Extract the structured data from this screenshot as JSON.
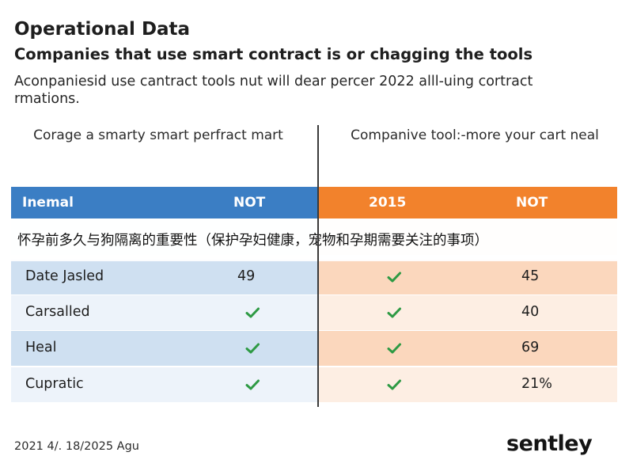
{
  "header": {
    "title": "Operational Data",
    "subtitle": "Companies that use smart contract is or chagging the tools",
    "description": "Aconpaniesid use cantract tools nut will dear percer 2022 alll-uing cortract rmations."
  },
  "columns": {
    "left_heading": "Corage a smarty smart perfract mart",
    "right_heading": "Companive tool:-more your cart neal"
  },
  "table": {
    "header_cells": [
      "Inemal",
      "NOT",
      "2015",
      "NOT"
    ],
    "rows": [
      {
        "label": "Date Jasled",
        "col2": "49",
        "col3": "check",
        "col4": "45"
      },
      {
        "label": "Carsalled",
        "col2": "check",
        "col3": "check",
        "col4": "40"
      },
      {
        "label": "Heal",
        "col2": "check",
        "col3": "check",
        "col4": "69"
      },
      {
        "label": "Cupratic",
        "col2": "check",
        "col3": "check",
        "col4": "21%"
      }
    ]
  },
  "overlay": {
    "text": "怀孕前多久与狗隔离的重要性（保护孕妇健康，宠物和孕期需要关注的事项）"
  },
  "footer": {
    "date": "2021 4/. 18/2025 Agu",
    "logo": "sentley"
  },
  "colors": {
    "header_blue": "#3b7ec4",
    "header_orange": "#f2822c",
    "check_green": "#2e9a44"
  },
  "icons": {
    "check": "check-icon"
  }
}
